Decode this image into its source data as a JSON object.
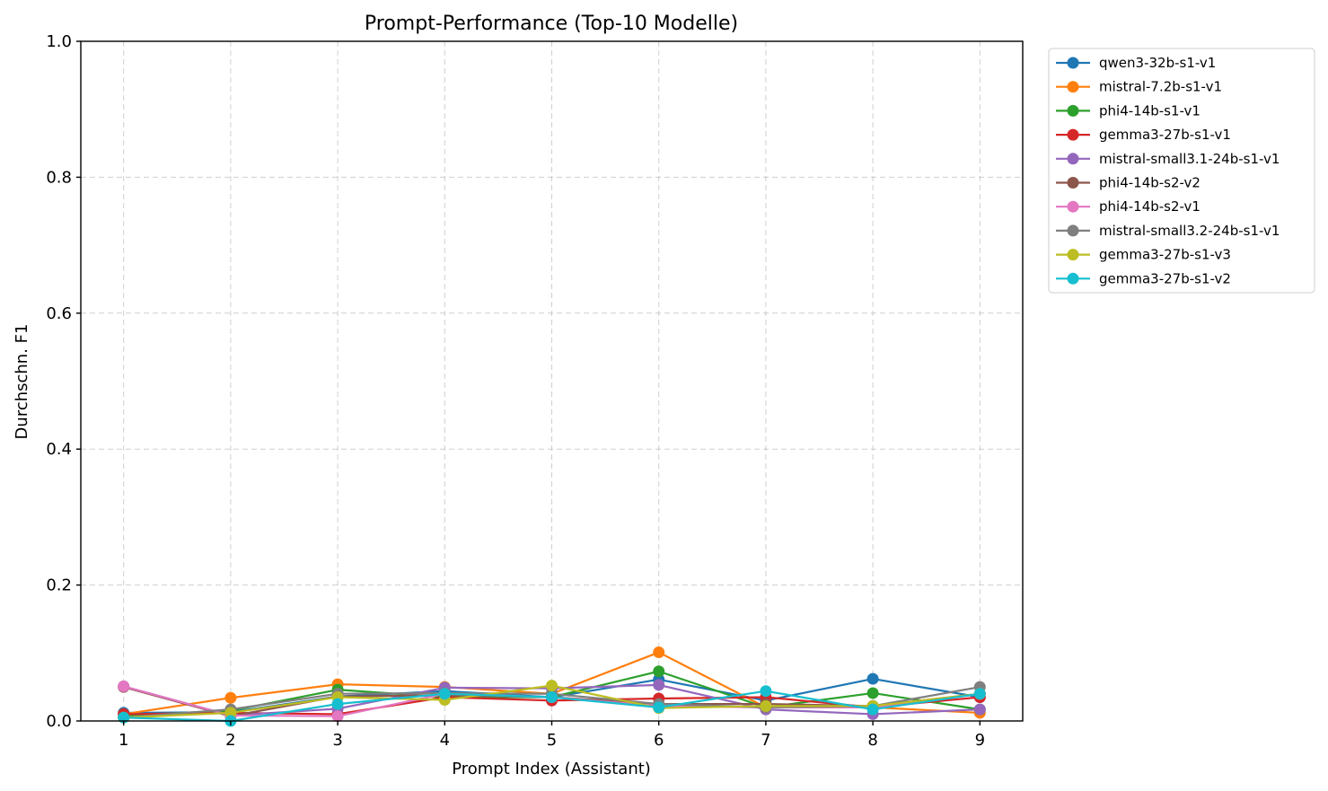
{
  "chart_data": {
    "type": "line",
    "title": "Prompt-Performance (Top-10 Modelle)",
    "xlabel": "Prompt Index (Assistant)",
    "ylabel": "Durchschn. F1",
    "x": [
      1,
      2,
      3,
      4,
      5,
      6,
      7,
      8,
      9
    ],
    "xticks": [
      "1",
      "2",
      "3",
      "4",
      "5",
      "6",
      "7",
      "8",
      "9"
    ],
    "xlim": [
      0.6,
      9.4
    ],
    "ylim": [
      0.0,
      1.0
    ],
    "yticks": [
      "0.0",
      "0.2",
      "0.4",
      "0.6",
      "0.8",
      "1.0"
    ],
    "grid": true,
    "legend_position": "outside-top-right",
    "series": [
      {
        "name": "qwen3-32b-s1-v1",
        "color": "#1f77b4",
        "values": [
          0.012,
          0.013,
          0.036,
          0.044,
          0.035,
          0.061,
          0.03,
          0.062,
          0.035
        ]
      },
      {
        "name": "mistral-7.2b-s1-v1",
        "color": "#ff7f0e",
        "values": [
          0.01,
          0.034,
          0.054,
          0.05,
          0.04,
          0.101,
          0.02,
          0.02,
          0.012
        ]
      },
      {
        "name": "phi4-14b-s1-v1",
        "color": "#2ca02c",
        "values": [
          0.008,
          0.015,
          0.046,
          0.035,
          0.035,
          0.073,
          0.02,
          0.041,
          0.017
        ]
      },
      {
        "name": "gemma3-27b-s1-v1",
        "color": "#d62728",
        "values": [
          0.01,
          0.012,
          0.01,
          0.035,
          0.03,
          0.033,
          0.035,
          0.02,
          0.035
        ]
      },
      {
        "name": "mistral-small3.1-24b-s1-v1",
        "color": "#9467bd",
        "values": [
          0.051,
          0.008,
          0.018,
          0.049,
          0.048,
          0.053,
          0.017,
          0.01,
          0.017
        ]
      },
      {
        "name": "phi4-14b-s2-v2",
        "color": "#8c564b",
        "values": [
          0.05,
          0.007,
          0.036,
          0.038,
          0.035,
          0.025,
          0.025,
          0.022,
          0.04
        ]
      },
      {
        "name": "phi4-14b-s2-v1",
        "color": "#e377c2",
        "values": [
          0.051,
          0.008,
          0.007,
          0.04,
          0.035,
          0.022,
          0.02,
          0.02,
          0.04
        ]
      },
      {
        "name": "mistral-small3.2-24b-s1-v1",
        "color": "#7f7f7f",
        "values": [
          0.005,
          0.017,
          0.04,
          0.041,
          0.04,
          0.025,
          0.02,
          0.022,
          0.05
        ]
      },
      {
        "name": "gemma3-27b-s1-v3",
        "color": "#bcbd22",
        "values": [
          0.005,
          0.012,
          0.035,
          0.031,
          0.052,
          0.019,
          0.022,
          0.022,
          0.04
        ]
      },
      {
        "name": "gemma3-27b-s1-v2",
        "color": "#17becf",
        "values": [
          0.005,
          0.0,
          0.025,
          0.04,
          0.035,
          0.02,
          0.044,
          0.017,
          0.04
        ]
      }
    ]
  }
}
